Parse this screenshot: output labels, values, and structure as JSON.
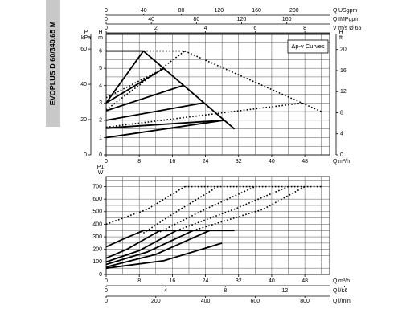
{
  "title": "EVOPLUS D 60/340.65 M",
  "legend_text": "Δp-v Curves",
  "chart_data": [
    {
      "type": "line",
      "xlim": [
        0,
        54
      ],
      "xticks": [
        0,
        8,
        16,
        24,
        32,
        40,
        48
      ],
      "xgrid": [
        0,
        4,
        8,
        12,
        16,
        20,
        24,
        28,
        32,
        36,
        40,
        44,
        48,
        52
      ],
      "ylim": [
        0,
        7
      ],
      "yticks": [
        0,
        1,
        2,
        3,
        4,
        5,
        6
      ],
      "ygrid": [
        0,
        0.5,
        1,
        1.5,
        2,
        2.5,
        3,
        3.5,
        4,
        4.5,
        5,
        5.5,
        6,
        6.5,
        7
      ],
      "x_label": "Q",
      "x_unit": "m³/h",
      "y_label": "H",
      "y_unit": "m",
      "extra_axes": [
        {
          "side": "top",
          "label": "Q",
          "unit": "USgpm",
          "lim": [
            0,
            237.8
          ],
          "ticks": [
            0,
            40,
            80,
            120,
            160,
            200
          ]
        },
        {
          "side": "top",
          "label": "Q",
          "unit": "IMPgpm",
          "lim": [
            0,
            198
          ],
          "ticks": [
            0,
            40,
            80,
            120,
            160
          ]
        },
        {
          "side": "top",
          "label": "V",
          "unit": "m/s Ø 65",
          "lim": [
            0,
            9
          ],
          "ticks": [
            0,
            2,
            4,
            6,
            8
          ]
        },
        {
          "side": "left",
          "label": "P",
          "unit": "kPa",
          "lim": [
            0,
            68.7
          ],
          "ticks": [
            0,
            20,
            40,
            60
          ]
        },
        {
          "side": "right",
          "label": "H",
          "unit": "ft",
          "lim": [
            0,
            23
          ],
          "ticks": [
            0,
            4,
            8,
            12,
            16,
            20
          ]
        }
      ],
      "series": [
        {
          "color": "#000",
          "dash": false,
          "x": [
            0,
            28.5
          ],
          "values": [
            1,
            2
          ]
        },
        {
          "color": "#000",
          "dash": false,
          "x": [
            0,
            28.5
          ],
          "values": [
            1.55,
            2
          ]
        },
        {
          "color": "#000",
          "dash": false,
          "x": [
            0,
            23.5
          ],
          "values": [
            2,
            3
          ]
        },
        {
          "color": "#000",
          "dash": false,
          "x": [
            0,
            18.5
          ],
          "values": [
            2.55,
            4
          ]
        },
        {
          "color": "#000",
          "dash": false,
          "x": [
            0,
            14
          ],
          "values": [
            3,
            5
          ]
        },
        {
          "color": "#000",
          "dash": false,
          "x": [
            0,
            9
          ],
          "values": [
            3,
            6
          ]
        },
        {
          "color": "#000",
          "dash": false,
          "x": [
            0,
            9
          ],
          "values": [
            6,
            6
          ]
        },
        {
          "color": "#000",
          "dash": false,
          "x": [
            9,
            31
          ],
          "values": [
            6,
            1.5
          ]
        },
        {
          "color": "#000",
          "dash": true,
          "x": [
            9,
            19
          ],
          "values": [
            6,
            6
          ]
        },
        {
          "color": "#000",
          "dash": true,
          "x": [
            19,
            52
          ],
          "values": [
            6,
            2.5
          ]
        },
        {
          "color": "#000",
          "dash": true,
          "x": [
            0,
            47.5
          ],
          "values": [
            1.6,
            3
          ]
        },
        {
          "color": "#000",
          "dash": true,
          "x": [
            0,
            19
          ],
          "values": [
            2.6,
            6
          ]
        },
        {
          "color": "#000",
          "dash": true,
          "x": [
            0,
            14
          ],
          "values": [
            3.3,
            5
          ]
        }
      ]
    },
    {
      "type": "line",
      "xlim": [
        0,
        54
      ],
      "xticks": [
        0,
        8,
        16,
        24,
        32,
        40,
        48
      ],
      "xgrid": [
        0,
        4,
        8,
        12,
        16,
        20,
        24,
        28,
        32,
        36,
        40,
        44,
        48,
        52
      ],
      "ylim": [
        0,
        780
      ],
      "yticks": [
        0,
        100,
        200,
        300,
        400,
        500,
        600,
        700
      ],
      "ygrid": [
        0,
        50,
        100,
        150,
        200,
        250,
        300,
        350,
        400,
        450,
        500,
        550,
        600,
        650,
        700,
        750
      ],
      "x_label": "Q",
      "x_unit": "m³/h",
      "y_label": "P1",
      "y_unit": "W",
      "extra_axes": [
        {
          "side": "bottom",
          "label": "Q",
          "unit": "l/s",
          "lim": [
            0,
            15
          ],
          "ticks": [
            0,
            4,
            8,
            12,
            16
          ]
        },
        {
          "side": "bottom",
          "label": "Q",
          "unit": "l/min",
          "lim": [
            0,
            900
          ],
          "ticks": [
            0,
            200,
            400,
            600,
            800
          ]
        }
      ],
      "series": [
        {
          "color": "#000",
          "dash": false,
          "x": [
            0,
            4,
            9
          ],
          "values": [
            220,
            280,
            350
          ]
        },
        {
          "color": "#000",
          "dash": false,
          "x": [
            0,
            5,
            13
          ],
          "values": [
            130,
            200,
            350
          ]
        },
        {
          "color": "#000",
          "dash": false,
          "x": [
            0,
            8,
            17
          ],
          "values": [
            100,
            190,
            350
          ]
        },
        {
          "color": "#000",
          "dash": false,
          "x": [
            0,
            10,
            21
          ],
          "values": [
            80,
            180,
            350
          ]
        },
        {
          "color": "#000",
          "dash": false,
          "x": [
            0,
            12,
            25
          ],
          "values": [
            60,
            160,
            350
          ]
        },
        {
          "color": "#000",
          "dash": false,
          "x": [
            9,
            31
          ],
          "values": [
            350,
            350
          ]
        },
        {
          "color": "#000",
          "dash": false,
          "x": [
            0,
            14,
            28
          ],
          "values": [
            50,
            110,
            250
          ]
        },
        {
          "color": "#000",
          "dash": true,
          "x": [
            0,
            10,
            19
          ],
          "values": [
            400,
            520,
            700
          ]
        },
        {
          "color": "#000",
          "dash": true,
          "x": [
            9,
            17,
            27
          ],
          "values": [
            330,
            500,
            700
          ]
        },
        {
          "color": "#000",
          "dash": true,
          "x": [
            13,
            24,
            36
          ],
          "values": [
            340,
            520,
            700
          ]
        },
        {
          "color": "#000",
          "dash": true,
          "x": [
            17,
            31,
            44
          ],
          "values": [
            350,
            520,
            700
          ]
        },
        {
          "color": "#000",
          "dash": true,
          "x": [
            21,
            38,
            48
          ],
          "values": [
            350,
            520,
            700
          ]
        },
        {
          "color": "#000",
          "dash": true,
          "x": [
            19,
            52
          ],
          "values": [
            700,
            700
          ]
        }
      ]
    }
  ]
}
